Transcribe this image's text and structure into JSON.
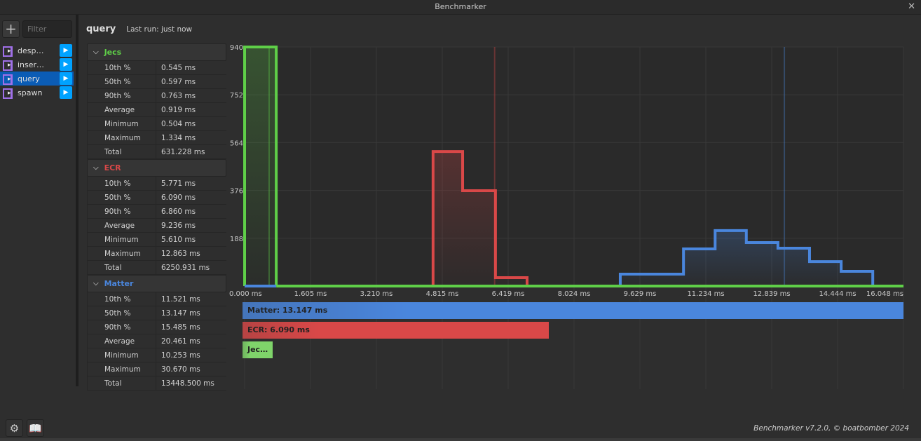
{
  "window": {
    "title": "Benchmarker",
    "close_icon": "close-icon"
  },
  "sidebar": {
    "add_label": "+",
    "filter_placeholder": "Filter",
    "items": [
      {
        "label": "desp…"
      },
      {
        "label": "inser…"
      },
      {
        "label": "query",
        "selected": true
      },
      {
        "label": "spawn"
      }
    ]
  },
  "header": {
    "name": "query",
    "last_run": "Last run: just now"
  },
  "stats": [
    {
      "name": "Jecs",
      "color": "#5fcf48",
      "rows": [
        [
          "10th %",
          "0.545 ms"
        ],
        [
          "50th %",
          "0.597 ms"
        ],
        [
          "90th %",
          "0.763 ms"
        ],
        [
          "Average",
          "0.919 ms"
        ],
        [
          "Minimum",
          "0.504 ms"
        ],
        [
          "Maximum",
          "1.334 ms"
        ],
        [
          "Total",
          "631.228 ms"
        ]
      ]
    },
    {
      "name": "ECR",
      "color": "#d94848",
      "rows": [
        [
          "10th %",
          "5.771 ms"
        ],
        [
          "50th %",
          "6.090 ms"
        ],
        [
          "90th %",
          "6.860 ms"
        ],
        [
          "Average",
          "9.236 ms"
        ],
        [
          "Minimum",
          "5.610 ms"
        ],
        [
          "Maximum",
          "12.863 ms"
        ],
        [
          "Total",
          "6250.931 ms"
        ]
      ]
    },
    {
      "name": "Matter",
      "color": "#4a86dd",
      "rows": [
        [
          "10th %",
          "11.521 ms"
        ],
        [
          "50th %",
          "13.147 ms"
        ],
        [
          "90th %",
          "15.485 ms"
        ],
        [
          "Average",
          "20.461 ms"
        ],
        [
          "Minimum",
          "10.253 ms"
        ],
        [
          "Maximum",
          "30.670 ms"
        ],
        [
          "Total",
          "13448.500 ms"
        ]
      ]
    }
  ],
  "chart_data": {
    "type": "area",
    "xlim": [
      0,
      16.048
    ],
    "ylim": [
      0,
      940
    ],
    "xticks": [
      "0.000 ms",
      "1.605 ms",
      "3.210 ms",
      "4.815 ms",
      "6.419 ms",
      "8.024 ms",
      "9.629 ms",
      "11.234 ms",
      "12.839 ms",
      "14.444 ms",
      "16.048 ms"
    ],
    "yticks": [
      "188",
      "376",
      "564",
      "752",
      "940"
    ],
    "grid": true,
    "series": [
      {
        "name": "Jecs",
        "color": "#5fcf48",
        "median": 0.597,
        "bins": [
          [
            0,
            0.77,
            940
          ]
        ]
      },
      {
        "name": "ECR",
        "color": "#d94848",
        "median": 6.09,
        "bins": [
          [
            4.59,
            5.31,
            529
          ],
          [
            5.31,
            6.11,
            375
          ],
          [
            6.11,
            6.88,
            33
          ]
        ]
      },
      {
        "name": "Matter",
        "color": "#4a86dd",
        "median": 13.147,
        "bins": [
          [
            9.15,
            10.69,
            47
          ],
          [
            10.69,
            11.46,
            146
          ],
          [
            11.46,
            12.22,
            218
          ],
          [
            12.22,
            12.99,
            171
          ],
          [
            12.99,
            13.76,
            149
          ],
          [
            13.76,
            14.53,
            96
          ],
          [
            14.53,
            15.3,
            58
          ]
        ]
      }
    ]
  },
  "median_bars": [
    {
      "label": "Matter: 13.147 ms",
      "value": 13.147,
      "color": "#4a86dd"
    },
    {
      "label": "ECR: 6.090 ms",
      "value": 6.09,
      "color": "#d94848"
    },
    {
      "label": "Jec…",
      "value": 0.597,
      "color": "#7fd46a"
    }
  ],
  "footer": {
    "settings_icon": "gear-icon",
    "docs_icon": "book-icon",
    "credit": "Benchmarker v7.2.0, © boatbomber 2024"
  }
}
